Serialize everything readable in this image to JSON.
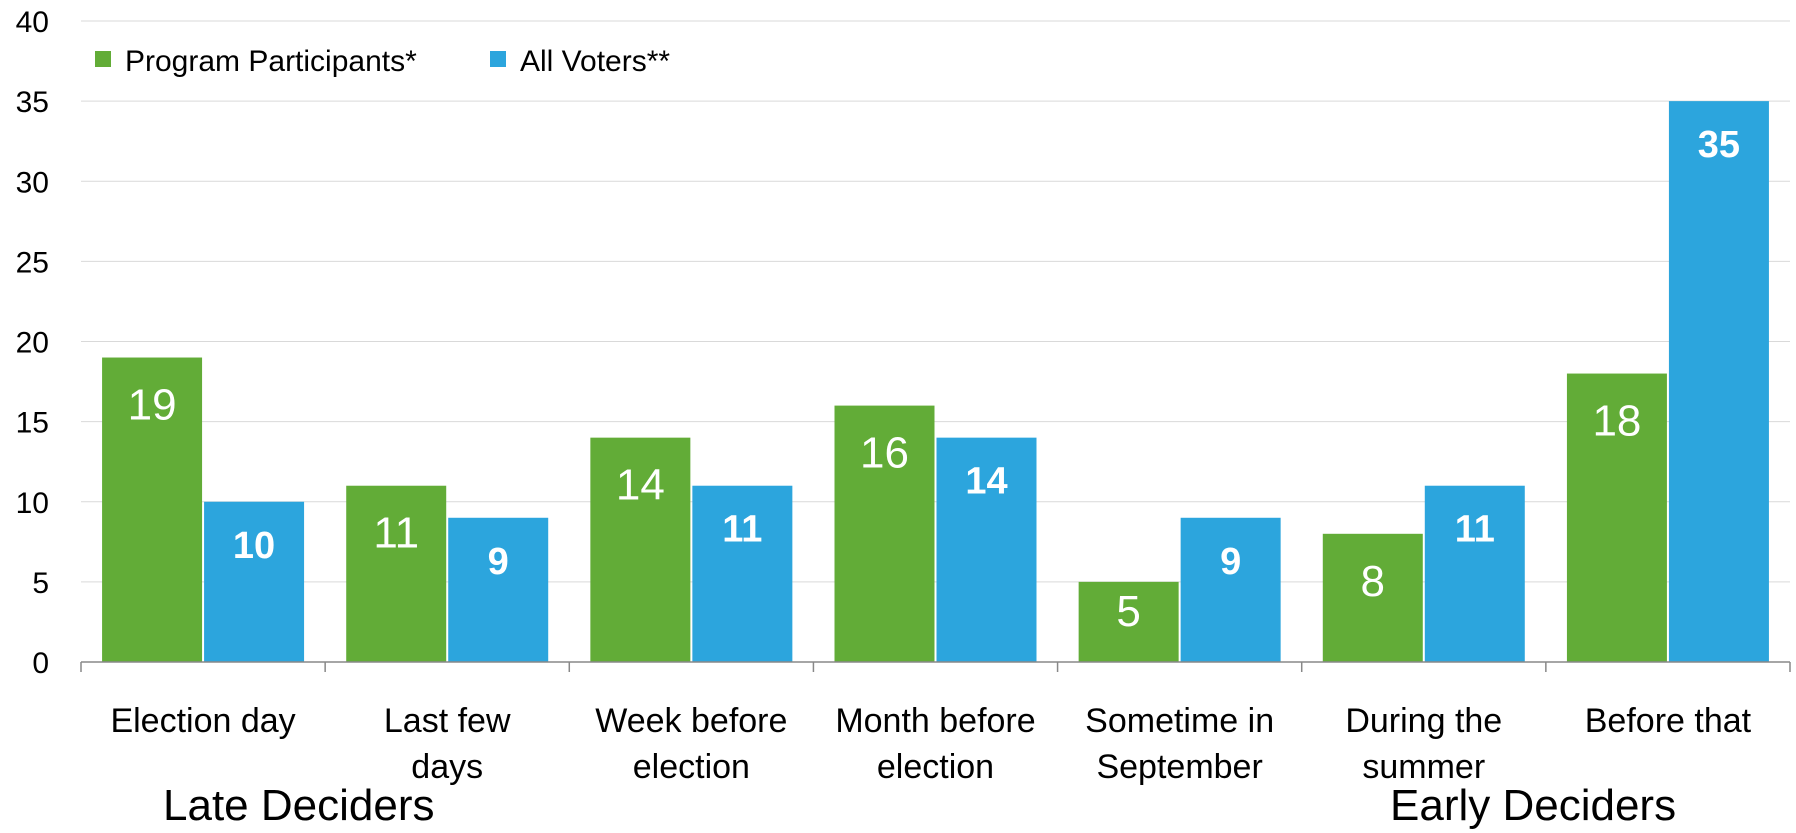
{
  "chart_data": {
    "type": "bar",
    "categories": [
      [
        "Election day"
      ],
      [
        "Last few",
        "days"
      ],
      [
        "Week before",
        "election"
      ],
      [
        "Month before",
        "election"
      ],
      [
        "Sometime in",
        "September"
      ],
      [
        "During the",
        "summer"
      ],
      [
        "Before that"
      ]
    ],
    "series": [
      {
        "name": "Program Participants*",
        "color": "#62AC37",
        "values": [
          19,
          11,
          14,
          16,
          5,
          8,
          18
        ]
      },
      {
        "name": "All Voters**",
        "color": "#2CA5DD",
        "values": [
          10,
          9,
          11,
          14,
          9,
          11,
          35
        ]
      }
    ],
    "ylim": [
      0,
      40
    ],
    "yticks": [
      0,
      5,
      10,
      15,
      20,
      25,
      30,
      35,
      40
    ],
    "grid": true,
    "legend": "top-left",
    "group_labels": [
      "Late Deciders",
      "Early Deciders"
    ]
  }
}
